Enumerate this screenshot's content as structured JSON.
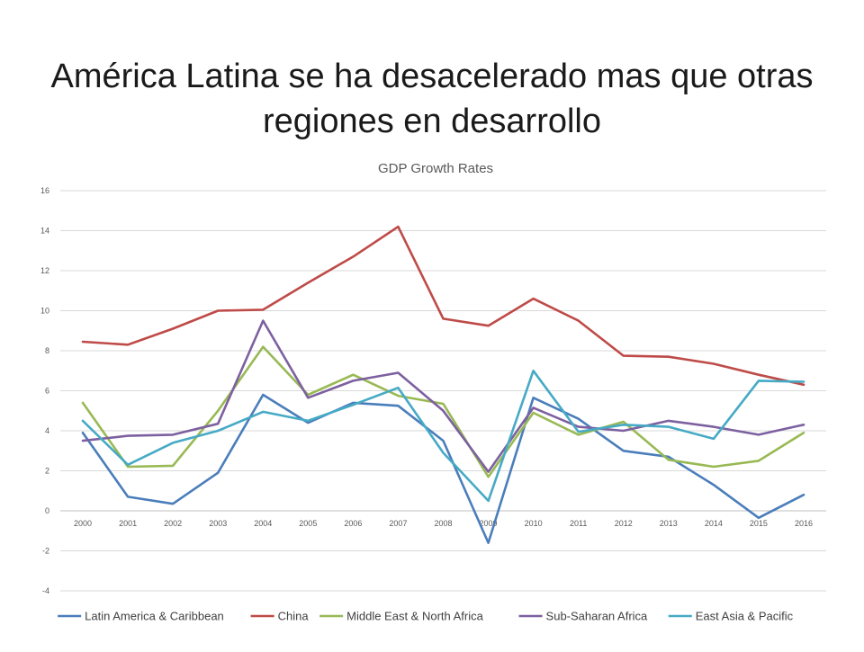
{
  "slide": {
    "title_line1": "América Latina se ha desacelerado mas que otras",
    "title_line2": "regiones en desarrollo"
  },
  "chart_data": {
    "type": "line",
    "title": "GDP Growth Rates",
    "xlabel": "",
    "ylabel": "",
    "categories": [
      "2000",
      "2001",
      "2002",
      "2003",
      "2004",
      "2005",
      "2006",
      "2007",
      "2008",
      "2009",
      "2010",
      "2011",
      "2012",
      "2013",
      "2014",
      "2015",
      "2016"
    ],
    "ylim": [
      -4,
      16
    ],
    "yticks": [
      16,
      14,
      12,
      10,
      8,
      6,
      4,
      2,
      0,
      -2,
      -4
    ],
    "grid": true,
    "legend_position": "bottom",
    "series": [
      {
        "name": "Latin America & Caribbean",
        "color": "#4a7ebb",
        "values": [
          3.9,
          0.7,
          0.35,
          1.9,
          5.8,
          4.4,
          5.4,
          5.25,
          3.5,
          -1.6,
          5.65,
          4.6,
          3.0,
          2.7,
          1.3,
          -0.35,
          0.8
        ]
      },
      {
        "name": "China",
        "color": "#be4b48",
        "values": [
          8.45,
          8.3,
          9.1,
          10.0,
          10.05,
          11.4,
          12.7,
          14.2,
          9.6,
          9.25,
          10.6,
          9.5,
          7.75,
          7.7,
          7.35,
          6.8,
          6.3
        ]
      },
      {
        "name": "Middle East & North Africa",
        "color": "#98b954",
        "values": [
          5.4,
          2.2,
          2.25,
          5.0,
          8.2,
          5.8,
          6.8,
          5.75,
          5.35,
          1.7,
          4.9,
          3.8,
          4.45,
          2.55,
          2.2,
          2.5,
          3.9
        ]
      },
      {
        "name": "Sub-Saharan Africa",
        "color": "#7d60a0",
        "values": [
          3.5,
          3.75,
          3.8,
          4.35,
          9.5,
          5.65,
          6.5,
          6.9,
          5.0,
          1.95,
          5.15,
          4.2,
          4.0,
          4.5,
          4.2,
          3.8,
          4.3
        ]
      },
      {
        "name": "East Asia & Pacific",
        "color": "#46aac5",
        "values": [
          4.5,
          2.3,
          3.4,
          4.0,
          4.95,
          4.5,
          5.3,
          6.15,
          2.9,
          0.5,
          7.0,
          3.95,
          4.3,
          4.2,
          3.6,
          6.5,
          6.45
        ]
      }
    ]
  }
}
